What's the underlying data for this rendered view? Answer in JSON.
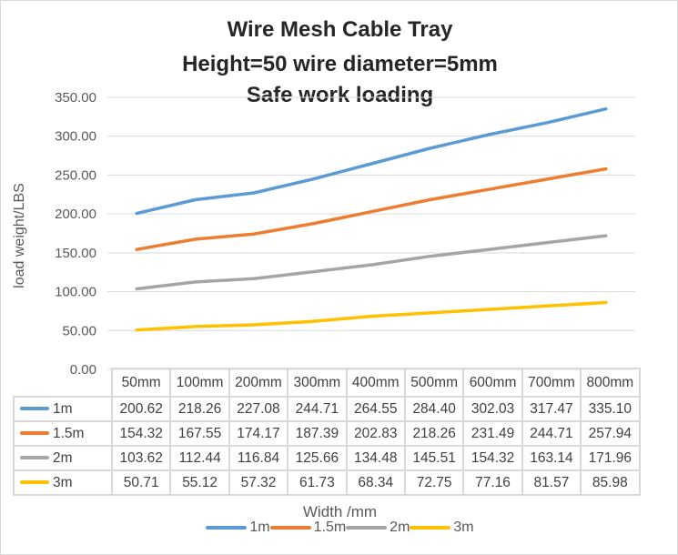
{
  "chart_data": {
    "type": "line",
    "title_lines": [
      "Wire Mesh Cable Tray",
      "Height=50  wire diameter=5mm",
      "Safe work loading"
    ],
    "xlabel": "Width /mm",
    "ylabel": "load weight/LBS",
    "categories": [
      "50mm",
      "100mm",
      "200mm",
      "300mm",
      "400mm",
      "500mm",
      "600mm",
      "700mm",
      "800mm"
    ],
    "ylim": [
      0,
      350
    ],
    "yticks": [
      "0.00",
      "50.00",
      "100.00",
      "150.00",
      "200.00",
      "250.00",
      "300.00",
      "350.00"
    ],
    "grid": true,
    "legend_position": "bottom",
    "data_table": true,
    "series": [
      {
        "name": "1m",
        "color": "#5b9bd5",
        "values": [
          200.62,
          218.26,
          227.08,
          244.71,
          264.55,
          284.4,
          302.03,
          317.47,
          335.1
        ]
      },
      {
        "name": "1.5m",
        "color": "#ed7d31",
        "values": [
          154.32,
          167.55,
          174.17,
          187.39,
          202.83,
          218.26,
          231.49,
          244.71,
          257.94
        ]
      },
      {
        "name": "2m",
        "color": "#a5a5a5",
        "values": [
          103.62,
          112.44,
          116.84,
          125.66,
          134.48,
          145.51,
          154.32,
          163.14,
          171.96
        ]
      },
      {
        "name": "3m",
        "color": "#ffc000",
        "values": [
          50.71,
          55.12,
          57.32,
          61.73,
          68.34,
          72.75,
          77.16,
          81.57,
          85.98
        ]
      }
    ]
  }
}
